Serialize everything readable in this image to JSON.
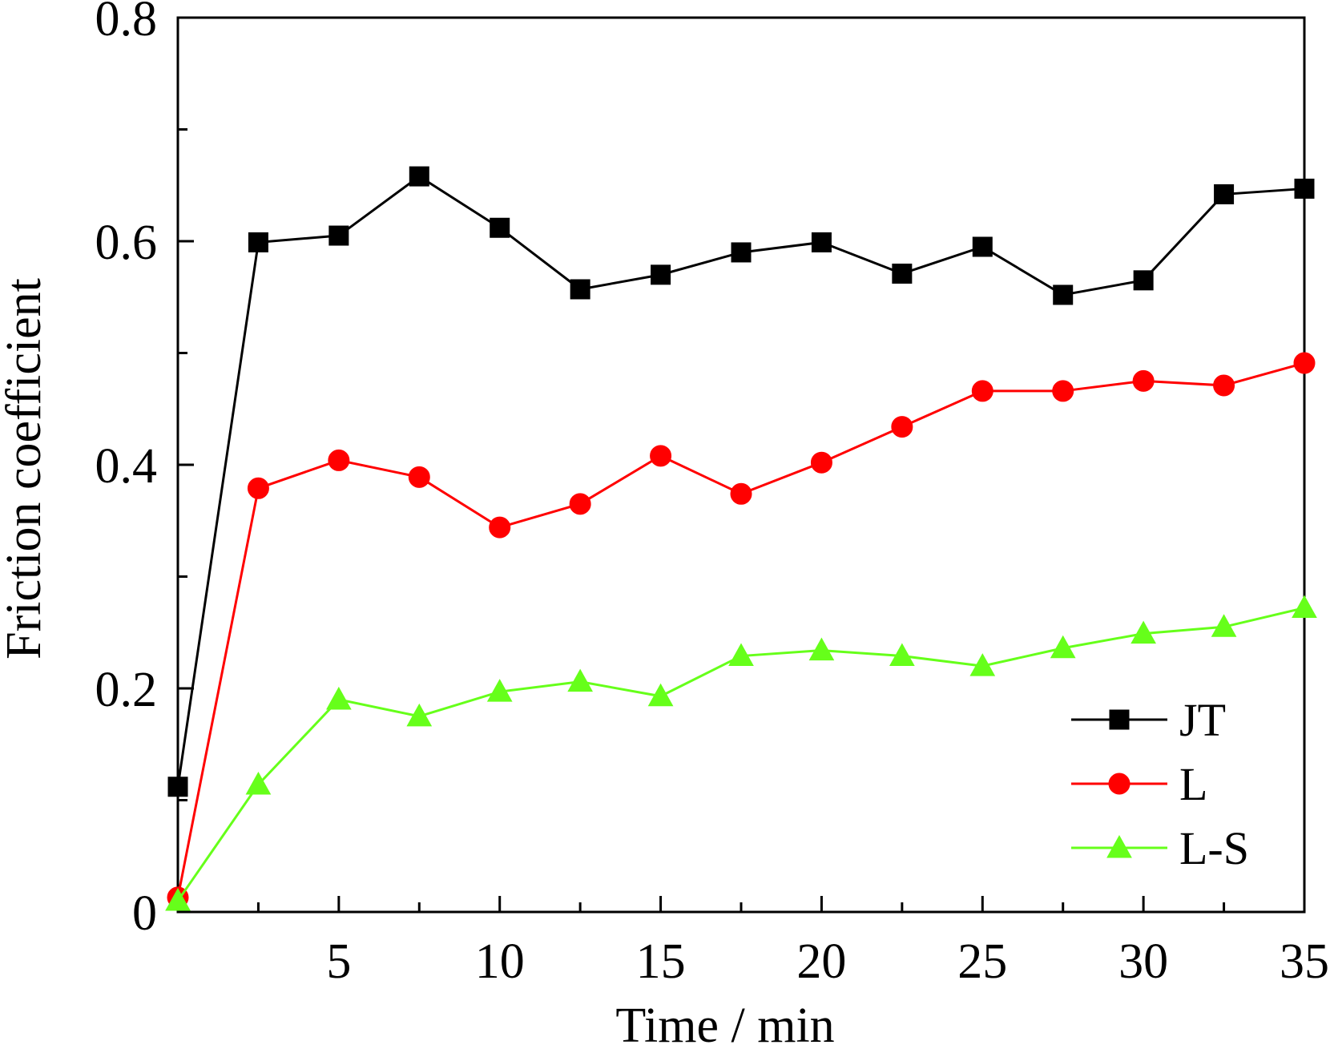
{
  "chart_data": {
    "type": "line",
    "title": "",
    "xlabel": "Time / min",
    "ylabel": "Friction coefficient",
    "xlim": [
      0,
      35
    ],
    "ylim": [
      0,
      0.8
    ],
    "x_ticks": [
      5,
      10,
      15,
      20,
      25,
      30,
      35
    ],
    "x_minor_ticks": [
      2.5,
      7.5,
      12.5,
      17.5,
      22.5,
      27.5,
      32.5
    ],
    "y_ticks": [
      0,
      0.2,
      0.4,
      0.6,
      0.8
    ],
    "y_tick_labels": [
      "0",
      "0.2",
      "0.4",
      "0.6",
      "0.8"
    ],
    "y_minor_ticks": [
      0.1,
      0.3,
      0.5,
      0.7
    ],
    "x": [
      0,
      2.5,
      5,
      7.5,
      10,
      12.5,
      15,
      17.5,
      20,
      22.5,
      25,
      27.5,
      30,
      32.5,
      35
    ],
    "series": [
      {
        "name": "JT",
        "color": "#000000",
        "marker": "square",
        "values": [
          0.112,
          0.599,
          0.605,
          0.658,
          0.612,
          0.557,
          0.57,
          0.59,
          0.599,
          0.571,
          0.595,
          0.552,
          0.565,
          0.642,
          0.647
        ]
      },
      {
        "name": "L",
        "color": "#ff0000",
        "marker": "circle",
        "values": [
          0.013,
          0.379,
          0.404,
          0.389,
          0.344,
          0.365,
          0.408,
          0.374,
          0.402,
          0.434,
          0.466,
          0.466,
          0.475,
          0.471,
          0.491
        ]
      },
      {
        "name": "L-S",
        "color": "#66ff1a",
        "marker": "triangle",
        "values": [
          0.01,
          0.114,
          0.19,
          0.175,
          0.197,
          0.206,
          0.193,
          0.229,
          0.234,
          0.229,
          0.22,
          0.236,
          0.249,
          0.255,
          0.272
        ]
      }
    ],
    "legend_position": "bottom-right"
  }
}
